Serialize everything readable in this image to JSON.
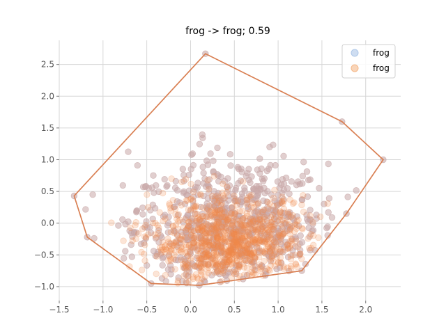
{
  "chart_data": {
    "type": "scatter",
    "title": "frog -> frog; 0.59",
    "xlabel": "",
    "ylabel": "",
    "xlim": [
      -1.5,
      2.4
    ],
    "ylim": [
      -1.22,
      2.88
    ],
    "x_ticks": [
      -1.5,
      -1.0,
      -0.5,
      0.0,
      0.5,
      1.0,
      1.5,
      2.0
    ],
    "x_tick_labels": [
      "−1.5",
      "−1.0",
      "−0.5",
      "0.0",
      "0.5",
      "1.0",
      "1.5",
      "2.0"
    ],
    "y_ticks": [
      -1.0,
      -0.5,
      0.0,
      0.5,
      1.0,
      1.5,
      2.0,
      2.5
    ],
    "y_tick_labels": [
      "−1.0",
      "−0.5",
      "0.0",
      "0.5",
      "1.0",
      "1.5",
      "2.0",
      "2.5"
    ],
    "grid": true,
    "legend": {
      "position": "top-right",
      "entries": [
        "frog",
        "frog"
      ]
    },
    "series": [
      {
        "name": "frog",
        "color": "#aec7e8",
        "center": [
          0.45,
          -0.3
        ],
        "spread": [
          0.45,
          0.35
        ],
        "count": 900,
        "hull": [
          [
            -1.33,
            0.43
          ],
          [
            0.17,
            2.67
          ],
          [
            1.73,
            1.6
          ],
          [
            2.2,
            1.0
          ],
          [
            1.78,
            0.15
          ],
          [
            1.27,
            -0.75
          ],
          [
            0.6,
            -0.88
          ],
          [
            0.1,
            -0.98
          ],
          [
            -0.45,
            -0.95
          ],
          [
            -1.18,
            -0.22
          ]
        ]
      },
      {
        "name": "frog",
        "color": "#f5b98a",
        "center": [
          0.45,
          -0.3
        ],
        "spread": [
          0.45,
          0.35
        ],
        "count": 900,
        "hull": [
          [
            -1.33,
            0.43
          ],
          [
            0.17,
            2.67
          ],
          [
            1.73,
            1.6
          ],
          [
            2.2,
            1.0
          ],
          [
            1.78,
            0.15
          ],
          [
            1.27,
            -0.75
          ],
          [
            0.6,
            -0.88
          ],
          [
            0.1,
            -0.98
          ],
          [
            -0.45,
            -0.95
          ],
          [
            -1.18,
            -0.22
          ]
        ]
      }
    ],
    "hull_color": "#d97f52",
    "point_colors": {
      "outer": "#c8a8a8",
      "core": "#f08a4b"
    }
  }
}
